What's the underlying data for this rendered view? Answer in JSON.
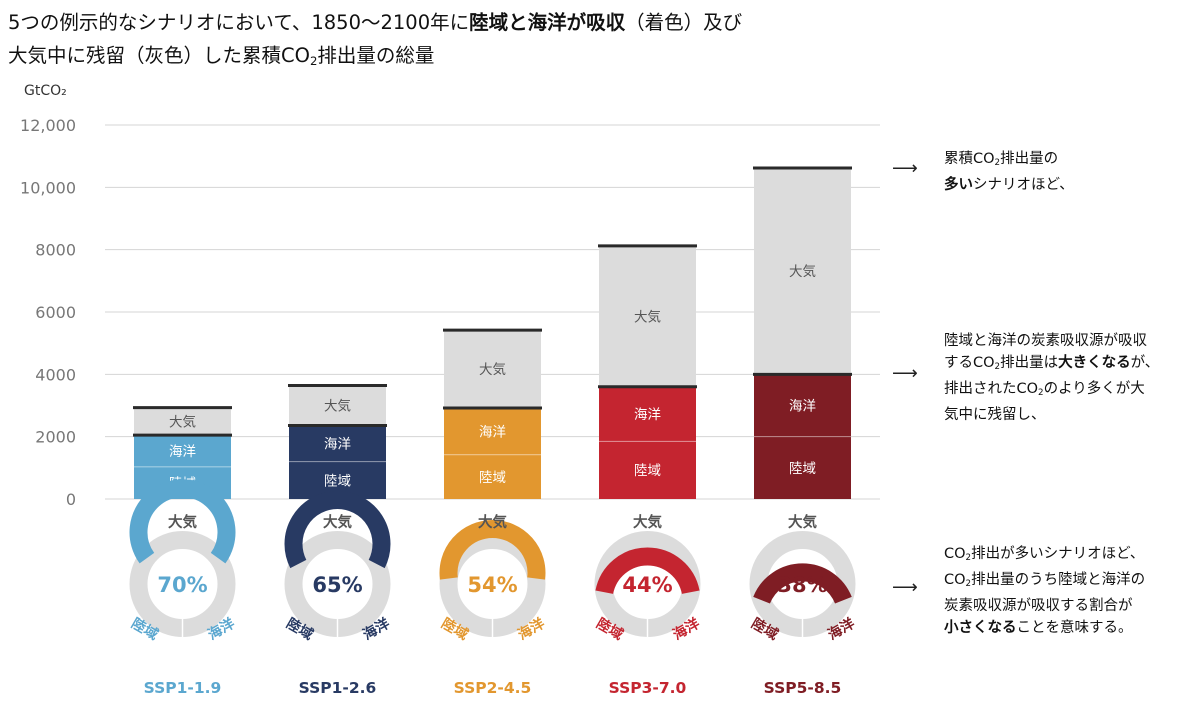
{
  "title": {
    "line1_a": "5つの例示的なシナリオにおいて、1850〜2100年に",
    "line1_b": "陸域と海洋が吸収",
    "line1_c": "（着色）及び",
    "line2_a": "大気中に残留（灰色）した累積CO",
    "line2_sub": "2",
    "line2_b": "排出量の総量"
  },
  "chart_data": {
    "type": "bar",
    "stacked": true,
    "ylabel": "GtCO₂",
    "ylim": [
      0,
      12000
    ],
    "yticks": [
      "0",
      "2000",
      "4000",
      "6000",
      "8000",
      "10,000",
      "12,000"
    ],
    "ytick_values": [
      0,
      2000,
      4000,
      6000,
      8000,
      10000,
      12000
    ],
    "grid": true,
    "categories": [
      "SSP1-1.9",
      "SSP1-2.6",
      "SSP2-4.5",
      "SSP3-7.0",
      "SSP5-8.5"
    ],
    "series": [
      {
        "name": "陸域",
        "values": [
          1030,
          1200,
          1420,
          1850,
          2000
        ]
      },
      {
        "name": "海洋",
        "values": [
          1020,
          1160,
          1500,
          1750,
          2000
        ]
      },
      {
        "name": "大気",
        "values": [
          880,
          1280,
          2500,
          4520,
          6620
        ]
      }
    ],
    "bar_colors": [
      "#5ba7cf",
      "#283a63",
      "#e2972f",
      "#c42530",
      "#7f1d24"
    ],
    "atmosphere_color": "#dcdcdc",
    "donuts": {
      "label_top": "大気",
      "label_left": "陸域",
      "label_right": "海洋",
      "percent_labels": [
        "70%",
        "65%",
        "54%",
        "44%",
        "38%"
      ],
      "percent_values": [
        70,
        65,
        54,
        44,
        38
      ]
    }
  },
  "notes": {
    "n1_a": "累積CO",
    "n1_sub": "2",
    "n1_b": "排出量の",
    "n1_bold": "多い",
    "n1_c": "シナリオほど、",
    "n2_a": "陸域と海洋の炭素吸収源が吸収",
    "n2_b": "するCO",
    "n2_sub": "2",
    "n2_c": "排出量は",
    "n2_bold": "大きくなる",
    "n2_d": "が、",
    "n2_e": "排出されたCO",
    "n2_sub2": "2",
    "n2_f": "のより多くが大",
    "n2_g": "気中に残留し、",
    "n3_a": "CO",
    "n3_sub": "2",
    "n3_b": "排出が多いシナリオほど、",
    "n3_c": "CO",
    "n3_sub2": "2",
    "n3_d": "排出量のうち陸域と海洋の",
    "n3_e": "炭素吸収源が吸収する割合が",
    "n3_bold": "小さくなる",
    "n3_f": "ことを意味する。",
    "arrow": "⟶"
  }
}
